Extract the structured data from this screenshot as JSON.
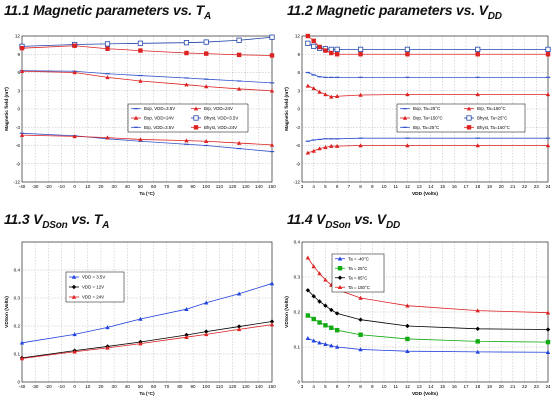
{
  "headings": [
    {
      "main": "11.1 Magnetic parameters vs. T",
      "sub": "A"
    },
    {
      "main": "11.2 Magnetic parameters vs. V",
      "sub": "DD"
    },
    {
      "main": "11.3 V",
      "sub": "DSon",
      "tail": " vs. T",
      "sub2": "A"
    },
    {
      "main": "11.4 V",
      "sub": "DSon",
      "tail": " vs. V",
      "sub2": "DD"
    }
  ],
  "chart_data": [
    {
      "type": "line",
      "xlabel": "Ta (°C)",
      "ylabel": "Magnetic field (mT)",
      "xlim": [
        -40,
        150
      ],
      "ylim": [
        -12,
        12
      ],
      "xticks": [
        -40,
        -30,
        -20,
        -10,
        0,
        10,
        20,
        30,
        40,
        50,
        60,
        70,
        80,
        90,
        100,
        110,
        120,
        130,
        140,
        150
      ],
      "yticks": [
        -12,
        -9,
        -6,
        -3,
        0,
        3,
        6,
        9,
        12
      ],
      "grid": true,
      "legend": "center-right",
      "series": [
        {
          "name": "Bop, VDD=3.5V",
          "color": "#3355cc",
          "marker": "dash",
          "x": [
            -40,
            0,
            25,
            50,
            85,
            100,
            125,
            150
          ],
          "y": [
            6.3,
            6.2,
            5.8,
            5.5,
            5.1,
            4.9,
            4.6,
            4.3
          ]
        },
        {
          "name": "Bop, VDD=24V",
          "color": "#dd2222",
          "marker": "triangle",
          "x": [
            -40,
            0,
            25,
            50,
            85,
            100,
            125,
            150
          ],
          "y": [
            6.2,
            6.0,
            5.2,
            4.6,
            4.0,
            3.7,
            3.3,
            3.0
          ]
        },
        {
          "name": "Brp, VDD=3.5V",
          "color": "#3355cc",
          "marker": "dash",
          "x": [
            -40,
            0,
            25,
            50,
            85,
            100,
            125,
            150
          ],
          "y": [
            -4.0,
            -4.4,
            -4.9,
            -5.3,
            -5.8,
            -6.0,
            -6.5,
            -7.0
          ]
        },
        {
          "name": "Brp, VDD=24V",
          "color": "#dd2222",
          "marker": "triangle",
          "x": [
            -40,
            0,
            25,
            50,
            85,
            100,
            125,
            150
          ],
          "y": [
            -4.3,
            -4.5,
            -4.7,
            -5.0,
            -5.2,
            -5.3,
            -5.6,
            -5.9
          ]
        },
        {
          "name": "Bhyst, VDD=3.5V",
          "color": "#2244aa",
          "marker": "square-open",
          "x": [
            -40,
            0,
            25,
            50,
            85,
            100,
            125,
            150
          ],
          "y": [
            10.3,
            10.6,
            10.7,
            10.8,
            10.9,
            11.0,
            11.3,
            11.8
          ]
        },
        {
          "name": "Bhyst, VDD=24V",
          "color": "#dd2222",
          "marker": "square",
          "x": [
            -40,
            0,
            25,
            50,
            85,
            100,
            125,
            150
          ],
          "y": [
            10.0,
            10.4,
            9.9,
            9.6,
            9.2,
            9.1,
            8.9,
            8.8
          ]
        }
      ]
    },
    {
      "type": "line",
      "xlabel": "VDD (Volts)",
      "ylabel": "Magnetic field (mT)",
      "xlim": [
        3,
        24
      ],
      "ylim": [
        -12,
        12
      ],
      "xticks": [
        3,
        4,
        5,
        6,
        7,
        8,
        9,
        10,
        11,
        12,
        13,
        14,
        15,
        16,
        17,
        18,
        19,
        20,
        21,
        22,
        23,
        24
      ],
      "yticks": [
        -12,
        -9,
        -6,
        -3,
        0,
        3,
        6,
        9,
        12
      ],
      "grid": true,
      "legend": "center-right",
      "series": [
        {
          "name": "Bop, Ta=25°C",
          "color": "#3355cc",
          "marker": "dash",
          "x": [
            3.5,
            4,
            4.5,
            5,
            5.5,
            6,
            8,
            12,
            18,
            24
          ],
          "y": [
            6.0,
            5.6,
            5.3,
            5.2,
            5.2,
            5.2,
            5.2,
            5.2,
            5.2,
            5.2
          ]
        },
        {
          "name": "Bop, Ta=150°C",
          "color": "#dd2222",
          "marker": "triangle",
          "x": [
            3.5,
            4,
            4.5,
            5,
            5.5,
            6,
            8,
            12,
            18,
            24
          ],
          "y": [
            3.8,
            3.4,
            2.8,
            2.4,
            2.0,
            2.1,
            2.3,
            2.4,
            2.4,
            2.4
          ]
        },
        {
          "name": "Brp, Ta=25°C",
          "color": "#3355cc",
          "marker": "dash",
          "x": [
            3.5,
            4,
            4.5,
            5,
            5.5,
            6,
            8,
            12,
            18,
            24
          ],
          "y": [
            -5.3,
            -5.1,
            -5.0,
            -4.9,
            -4.9,
            -4.9,
            -4.8,
            -4.8,
            -4.8,
            -4.8
          ]
        },
        {
          "name": "Brp, Ta=150°C",
          "color": "#dd2222",
          "marker": "triangle",
          "x": [
            3.5,
            4,
            4.5,
            5,
            5.5,
            6,
            8,
            12,
            18,
            24
          ],
          "y": [
            -7.2,
            -6.9,
            -6.5,
            -6.3,
            -6.1,
            -6.1,
            -6.0,
            -6.0,
            -6.0,
            -6.0
          ]
        },
        {
          "name": "Bhyst, Ta=25°C",
          "color": "#2244aa",
          "marker": "square-open",
          "x": [
            3.5,
            4,
            4.5,
            5,
            5.5,
            6,
            8,
            12,
            18,
            24
          ],
          "y": [
            10.8,
            10.3,
            10.0,
            9.9,
            9.8,
            9.8,
            9.8,
            9.8,
            9.8,
            9.8
          ]
        },
        {
          "name": "Bhyst, Ta=150°C",
          "color": "#dd2222",
          "marker": "square",
          "x": [
            3.5,
            4,
            4.5,
            5,
            5.5,
            6,
            8,
            12,
            18,
            24
          ],
          "y": [
            12.0,
            11.2,
            10.2,
            9.6,
            9.2,
            9.0,
            9.0,
            9.0,
            9.0,
            9.0
          ]
        }
      ]
    },
    {
      "type": "line",
      "xlabel": "Ta (°C)",
      "ylabel": "VDSon (Volts)",
      "xlim": [
        -40,
        150
      ],
      "ylim": [
        0,
        0.5
      ],
      "xticks": [
        -40,
        -30,
        -20,
        -10,
        0,
        10,
        20,
        30,
        40,
        50,
        60,
        70,
        80,
        90,
        100,
        110,
        120,
        130,
        140,
        150
      ],
      "yticks": [
        0,
        0.1,
        0.2,
        0.3,
        0.4
      ],
      "grid": true,
      "legend": "top-left",
      "series": [
        {
          "name": "VDD = 3.5V",
          "color": "#2244dd",
          "marker": "triangle",
          "x": [
            -40,
            0,
            25,
            50,
            85,
            100,
            125,
            150
          ],
          "y": [
            0.14,
            0.17,
            0.195,
            0.225,
            0.26,
            0.283,
            0.315,
            0.352
          ]
        },
        {
          "name": "VDD = 12V",
          "color": "#000000",
          "marker": "diamond",
          "x": [
            -40,
            0,
            25,
            50,
            85,
            100,
            125,
            150
          ],
          "y": [
            0.086,
            0.112,
            0.127,
            0.143,
            0.168,
            0.18,
            0.198,
            0.216
          ]
        },
        {
          "name": "VDD = 24V",
          "color": "#dd2222",
          "marker": "triangle",
          "x": [
            -40,
            0,
            25,
            50,
            85,
            100,
            125,
            150
          ],
          "y": [
            0.084,
            0.108,
            0.122,
            0.137,
            0.16,
            0.17,
            0.188,
            0.205
          ]
        }
      ]
    },
    {
      "type": "line",
      "xlabel": "VDD (Volts)",
      "ylabel": "VDSon (Volts)",
      "xlim": [
        3,
        24
      ],
      "ylim": [
        0,
        0.4
      ],
      "xticks": [
        3,
        4,
        5,
        6,
        7,
        8,
        9,
        10,
        11,
        12,
        13,
        14,
        15,
        16,
        17,
        18,
        19,
        20,
        21,
        22,
        23,
        24
      ],
      "yticks": [
        0,
        0.1,
        0.2,
        0.3,
        0.4
      ],
      "grid": true,
      "legend": "top-left",
      "series": [
        {
          "name": "Ta = -40°C",
          "color": "#2244dd",
          "marker": "triangle",
          "x": [
            3.5,
            4,
            4.5,
            5,
            5.5,
            6,
            8,
            12,
            18,
            24
          ],
          "y": [
            0.125,
            0.118,
            0.112,
            0.108,
            0.104,
            0.1,
            0.093,
            0.088,
            0.086,
            0.085
          ]
        },
        {
          "name": "Ta = 25°C",
          "color": "#11aa11",
          "marker": "square",
          "x": [
            3.5,
            4,
            4.5,
            5,
            5.5,
            6,
            8,
            12,
            18,
            24
          ],
          "y": [
            0.19,
            0.18,
            0.17,
            0.162,
            0.155,
            0.148,
            0.135,
            0.123,
            0.116,
            0.114
          ]
        },
        {
          "name": "Ta = 85°C",
          "color": "#000000",
          "marker": "diamond",
          "x": [
            3.5,
            4,
            4.5,
            5,
            5.5,
            6,
            8,
            12,
            18,
            24
          ],
          "y": [
            0.262,
            0.245,
            0.23,
            0.218,
            0.206,
            0.196,
            0.178,
            0.16,
            0.152,
            0.15
          ]
        },
        {
          "name": "Ta = 150°C",
          "color": "#dd2222",
          "marker": "triangle",
          "x": [
            3.5,
            4,
            4.5,
            5,
            5.5,
            6,
            8,
            12,
            18,
            24
          ],
          "y": [
            0.355,
            0.33,
            0.31,
            0.292,
            0.277,
            0.264,
            0.24,
            0.218,
            0.204,
            0.198
          ]
        }
      ]
    }
  ]
}
